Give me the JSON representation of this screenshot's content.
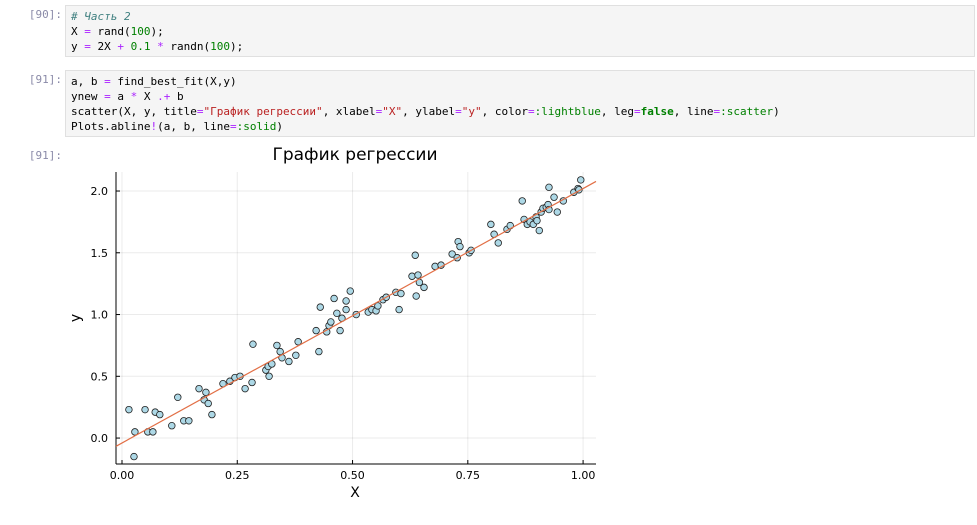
{
  "cells": [
    {
      "prompt": "[90]:",
      "lines": [
        "# Часть 2",
        "X = rand(100);",
        "y = 2X + 0.1 * randn(100);"
      ]
    },
    {
      "prompt": "[91]:",
      "lines": [
        "a, b = find_best_fit(X,y)",
        "ynew = a * X .+ b",
        "scatter(X, y, title=\"График регрессии\", xlabel=\"X\", ylabel=\"y\", color=:lightblue, leg=false, line=:scatter)",
        "Plots.abline!(a, b, line=:solid)"
      ]
    }
  ],
  "output": {
    "prompt": "[91]:"
  },
  "chart_data": {
    "type": "scatter",
    "title": "График регрессии",
    "xlabel": "X",
    "ylabel": "y",
    "x": [
      0.015,
      0.028,
      0.026,
      0.05,
      0.056,
      0.067,
      0.072,
      0.082,
      0.108,
      0.121,
      0.134,
      0.145,
      0.167,
      0.178,
      0.182,
      0.187,
      0.195,
      0.219,
      0.234,
      0.245,
      0.256,
      0.267,
      0.282,
      0.284,
      0.312,
      0.317,
      0.319,
      0.325,
      0.336,
      0.343,
      0.347,
      0.362,
      0.377,
      0.382,
      0.421,
      0.427,
      0.43,
      0.444,
      0.449,
      0.453,
      0.46,
      0.466,
      0.473,
      0.477,
      0.486,
      0.486,
      0.495,
      0.508,
      0.534,
      0.542,
      0.551,
      0.555,
      0.566,
      0.573,
      0.594,
      0.601,
      0.605,
      0.629,
      0.636,
      0.638,
      0.642,
      0.645,
      0.655,
      0.679,
      0.692,
      0.716,
      0.727,
      0.729,
      0.733,
      0.753,
      0.757,
      0.8,
      0.807,
      0.816,
      0.835,
      0.842,
      0.868,
      0.872,
      0.879,
      0.885,
      0.892,
      0.898,
      0.9,
      0.905,
      0.909,
      0.913,
      0.92,
      0.924,
      0.926,
      0.926,
      0.937,
      0.944,
      0.957,
      0.98,
      0.989,
      0.991,
      0.995
    ],
    "y": [
      0.23,
      0.05,
      -0.15,
      0.23,
      0.05,
      0.05,
      0.21,
      0.19,
      0.1,
      0.33,
      0.14,
      0.14,
      0.4,
      0.31,
      0.37,
      0.28,
      0.19,
      0.44,
      0.46,
      0.49,
      0.5,
      0.4,
      0.45,
      0.76,
      0.55,
      0.58,
      0.5,
      0.6,
      0.75,
      0.7,
      0.65,
      0.62,
      0.67,
      0.78,
      0.87,
      0.7,
      1.06,
      0.86,
      0.91,
      0.94,
      1.13,
      1.01,
      0.87,
      0.97,
      1.11,
      1.04,
      1.19,
      1.0,
      1.02,
      1.04,
      1.03,
      1.07,
      1.12,
      1.14,
      1.18,
      1.04,
      1.17,
      1.31,
      1.48,
      1.15,
      1.32,
      1.26,
      1.22,
      1.39,
      1.4,
      1.49,
      1.46,
      1.59,
      1.55,
      1.5,
      1.52,
      1.73,
      1.65,
      1.58,
      1.69,
      1.72,
      1.92,
      1.77,
      1.73,
      1.75,
      1.73,
      1.79,
      1.76,
      1.68,
      1.83,
      1.86,
      1.87,
      1.89,
      2.03,
      1.85,
      1.95,
      1.83,
      1.92,
      1.99,
      2.02,
      2.01,
      2.09
    ],
    "color": "#add8e6",
    "line": {
      "slope": 2.06,
      "intercept": -0.04,
      "color": "#e26f46"
    },
    "xlim": [
      -0.013,
      1.028
    ],
    "ylim": [
      -0.21,
      2.154
    ],
    "xticks": [
      {
        "value": 0,
        "label": "0.00"
      },
      {
        "value": 0.25,
        "label": "0.25"
      },
      {
        "value": 0.5,
        "label": "0.50"
      },
      {
        "value": 0.75,
        "label": "0.75"
      },
      {
        "value": 1,
        "label": "1.00"
      }
    ],
    "yticks": [
      {
        "value": 0,
        "label": "0.0"
      },
      {
        "value": 0.5,
        "label": "0.5"
      },
      {
        "value": 1,
        "label": "1.0"
      },
      {
        "value": 1.5,
        "label": "1.5"
      },
      {
        "value": 2,
        "label": "2.0"
      }
    ],
    "grid": true
  }
}
